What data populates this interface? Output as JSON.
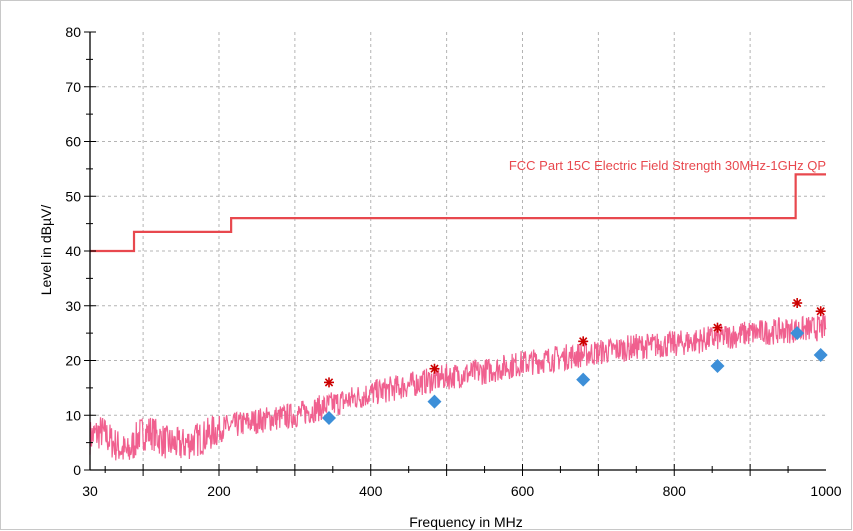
{
  "chart_data": {
    "type": "line",
    "xlabel": "Frequency in MHz",
    "ylabel": "Level in dBµV/",
    "xlim": [
      30,
      1000
    ],
    "ylim": [
      0,
      80
    ],
    "x_ticks": [
      30,
      200,
      400,
      600,
      800,
      1000
    ],
    "y_ticks": [
      0,
      10,
      20,
      30,
      40,
      50,
      60,
      70,
      80
    ],
    "grid": true,
    "colors": {
      "limit": "#e8484e",
      "trace": "#f0608f",
      "peak": "#cc0000",
      "qp": "#3d8fd8",
      "grid": "#b4b4b4"
    },
    "limit_line": {
      "name": "FCC Part 15C Electric Field Strength 30MHz-1GHz QP",
      "x": [
        30,
        88,
        88,
        216,
        216,
        960,
        960,
        1000
      ],
      "y": [
        40,
        40,
        43.5,
        43.5,
        46,
        46,
        54,
        54
      ]
    },
    "trace_envelope": {
      "x": [
        30,
        45,
        60,
        80,
        95,
        110,
        130,
        150,
        180,
        200,
        250,
        300,
        350,
        400,
        450,
        500,
        550,
        600,
        650,
        700,
        750,
        800,
        850,
        900,
        950,
        1000
      ],
      "y": [
        6,
        7,
        5,
        3,
        6.5,
        7,
        5,
        4.5,
        6,
        7.5,
        9,
        10,
        12,
        14,
        15.5,
        17,
        18,
        19.5,
        20.5,
        21.5,
        22.5,
        23,
        24,
        25,
        25.5,
        26
      ]
    },
    "peaks": {
      "x": [
        345,
        484,
        680,
        857,
        962,
        993
      ],
      "y": [
        16,
        18.5,
        23.5,
        26,
        30.5,
        29
      ]
    },
    "quasi_peaks": {
      "x": [
        345,
        484,
        680,
        857,
        962,
        993
      ],
      "y": [
        9.5,
        12.5,
        16.5,
        19,
        25,
        21
      ]
    }
  }
}
